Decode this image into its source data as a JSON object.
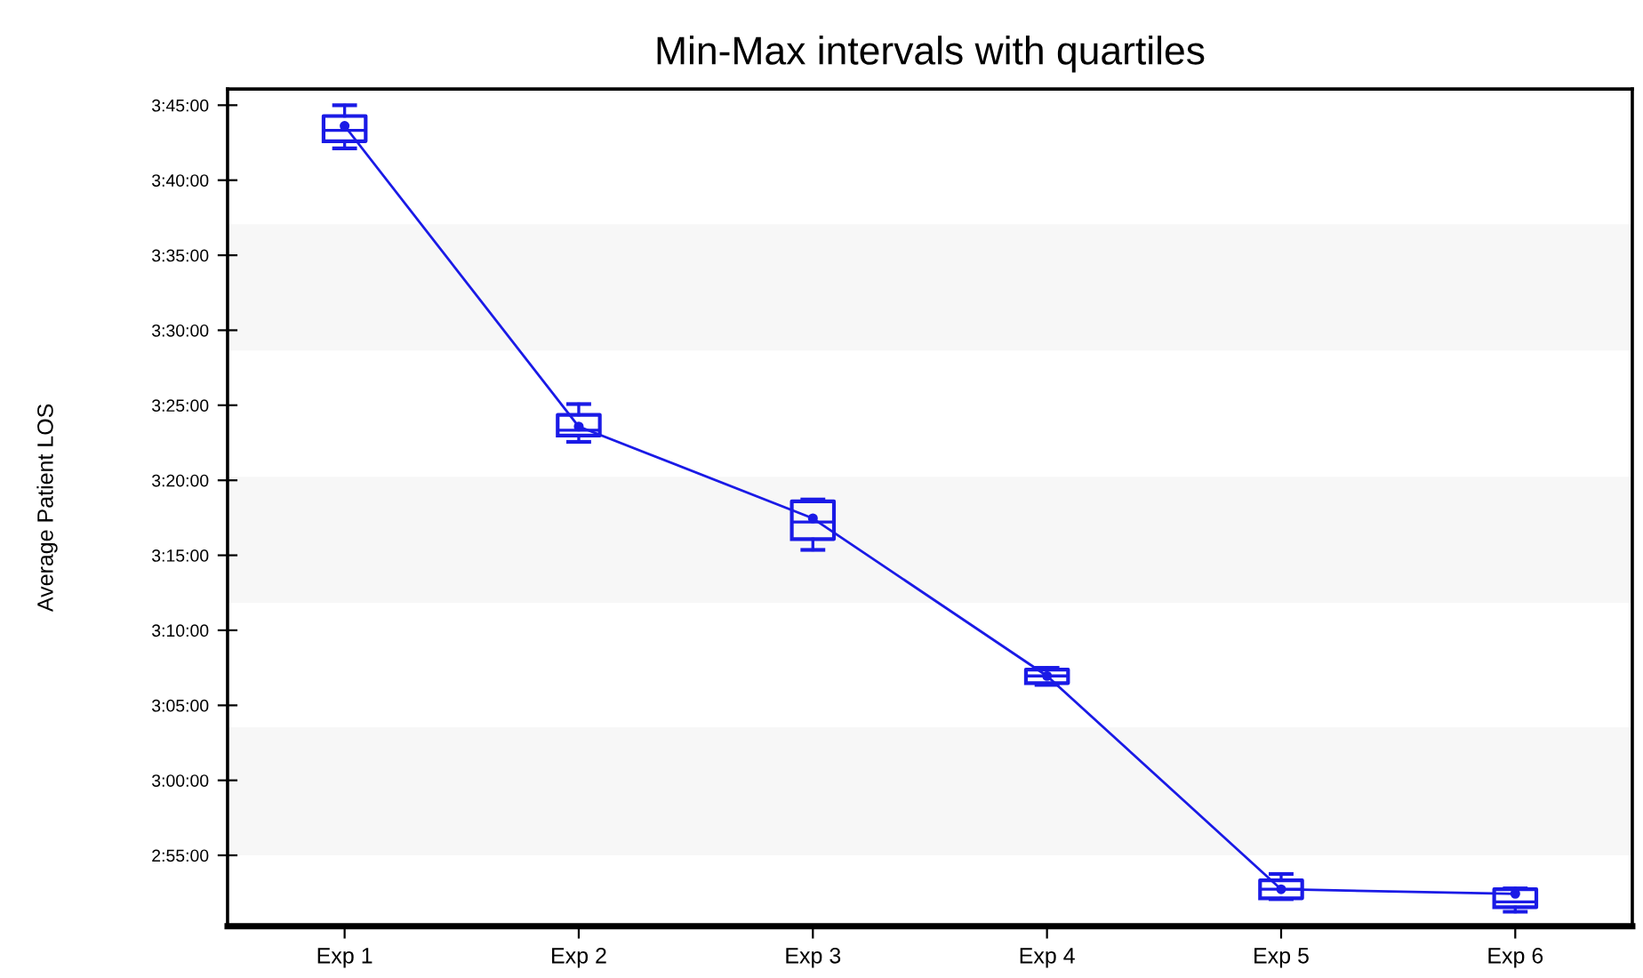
{
  "chart_data": {
    "type": "box",
    "title": "Min-Max intervals with quartiles",
    "ylabel": "Average Patient LOS",
    "categories": [
      "Exp 1",
      "Exp 2",
      "Exp 3",
      "Exp 4",
      "Exp 5",
      "Exp 6"
    ],
    "color": "#1a1ae6",
    "boxes": [
      {
        "low": 3.702,
        "q1": 3.71,
        "median": 3.722,
        "q3": 3.738,
        "high": 3.75,
        "mean": 3.727
      },
      {
        "low": 3.376,
        "q1": 3.383,
        "median": 3.389,
        "q3": 3.406,
        "high": 3.418,
        "mean": 3.393
      },
      {
        "low": 3.256,
        "q1": 3.268,
        "median": 3.287,
        "q3": 3.31,
        "high": 3.312,
        "mean": 3.291
      },
      {
        "low": 3.106,
        "q1": 3.108,
        "median": 3.116,
        "q3": 3.123,
        "high": 3.125,
        "mean": 3.116
      },
      {
        "low": 2.868,
        "q1": 2.869,
        "median": 2.879,
        "q3": 2.889,
        "high": 2.896,
        "mean": 2.879
      },
      {
        "low": 2.854,
        "q1": 2.859,
        "median": 2.865,
        "q3": 2.879,
        "high": 2.88,
        "mean": 2.874
      }
    ],
    "series": [
      {
        "type": "line",
        "color": "#1a1ae6",
        "values": [
          3.727,
          3.393,
          3.291,
          3.116,
          2.879,
          2.874
        ]
      }
    ],
    "ylim": [
      2.838,
      3.768
    ],
    "yticks": [
      {
        "value": 2.9167,
        "label": "2:55:00"
      },
      {
        "value": 3.0,
        "label": "3:00:00"
      },
      {
        "value": 3.0833,
        "label": "3:05:00"
      },
      {
        "value": 3.1667,
        "label": "3:10:00"
      },
      {
        "value": 3.25,
        "label": "3:15:00"
      },
      {
        "value": 3.3333,
        "label": "3:20:00"
      },
      {
        "value": 3.4167,
        "label": "3:25:00"
      },
      {
        "value": 3.5,
        "label": "3:30:00"
      },
      {
        "value": 3.5833,
        "label": "3:35:00"
      },
      {
        "value": 3.6667,
        "label": "3:40:00"
      },
      {
        "value": 3.75,
        "label": "3:45:00"
      }
    ],
    "bands": [
      {
        "axis": "y",
        "from": 3.4775,
        "to": 3.6177,
        "color": "#f7f7f7"
      },
      {
        "axis": "y",
        "from": 3.1971,
        "to": 3.3373,
        "color": "#f7f7f7"
      },
      {
        "axis": "y",
        "from": 2.9167,
        "to": 3.0589,
        "color": "#f7f7f7"
      }
    ],
    "grid": false,
    "legend": false,
    "marker": "none",
    "line_style": "solid"
  }
}
